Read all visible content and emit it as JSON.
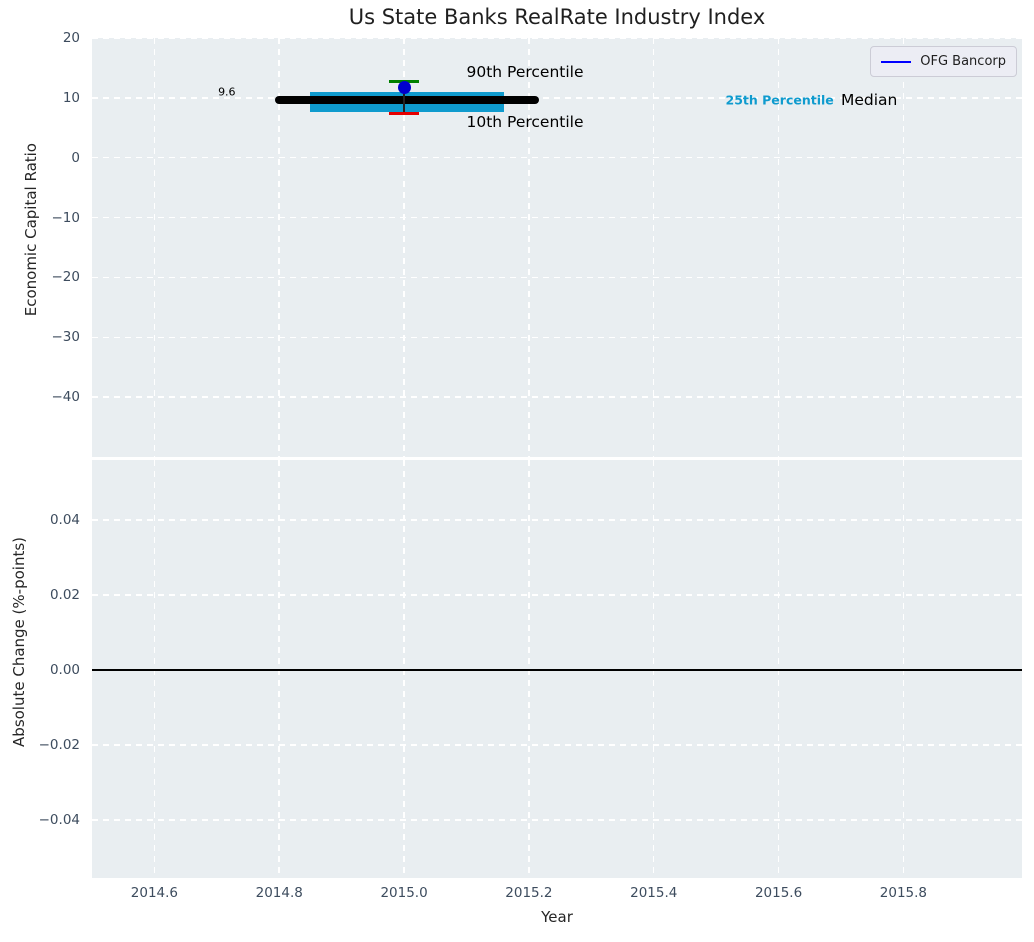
{
  "title": "Us State Banks RealRate Industry Index",
  "colors": {
    "figure_background": "#ffffff",
    "panel_background": "#e9eef1",
    "grid": "#ffffff",
    "tick_label": "#3d4c5e",
    "text": "#262626",
    "percentile_band": "#0f9bce",
    "median_line": "#000000",
    "marker_blue": "#0000cd",
    "whisker_high_green": "#008000",
    "whisker_low_red": "#e60000",
    "legend_line_blue": "#0000ff"
  },
  "chart_data": [
    {
      "type": "box-timeline",
      "title": "Us State Banks RealRate Industry Index",
      "ylabel": "Economic Capital Ratio",
      "xlim": [
        2014.5,
        2015.99
      ],
      "ylim": [
        -50,
        20
      ],
      "grid": {
        "color": "#ffffff",
        "style": "dashed"
      },
      "yticks": [
        {
          "value": 20,
          "label": "20"
        },
        {
          "value": 10,
          "label": "10"
        },
        {
          "value": 0,
          "label": "0"
        },
        {
          "value": -10,
          "label": "−10"
        },
        {
          "value": -20,
          "label": "−20"
        },
        {
          "value": -30,
          "label": "−30"
        },
        {
          "value": -40,
          "label": "−40"
        }
      ],
      "industry_median_line": {
        "value": 9.6,
        "x_start": 2014.8,
        "x_end": 2015.21,
        "color": "#000000",
        "data_label": "9.6",
        "meaning": "Median"
      },
      "percentile_band": {
        "meaning": "25th Percentile band",
        "y_low": 7.7,
        "y_high": 10.9,
        "x_start": 2014.85,
        "x_end": 2015.16,
        "color": "#0f9bce"
      },
      "company_marker": {
        "name": "OFG Bancorp",
        "x": 2015.0,
        "value": 11.8,
        "whisker_high": 12.8,
        "whisker_low": 7.4,
        "marker_color": "#0000cd",
        "whisker_line_color": "#222222",
        "whisker_high_cap_color": "#008000",
        "whisker_low_cap_color": "#e60000"
      },
      "annotations": [
        {
          "text": "9.6",
          "x": 2014.716,
          "y": 11.0,
          "color": "#000000",
          "size": 11,
          "weight": "normal",
          "align": "center"
        },
        {
          "text": "90th Percentile",
          "x": 2015.1,
          "y": 14.3,
          "color": "#000000",
          "size": 15.5,
          "weight": "normal",
          "align": "left"
        },
        {
          "text": "10th Percentile",
          "x": 2015.1,
          "y": 5.9,
          "color": "#000000",
          "size": 15.5,
          "weight": "normal",
          "align": "left"
        },
        {
          "text": "25th Percentile",
          "x": 2015.515,
          "y": 9.6,
          "color": "#0f9bce",
          "size": 12.5,
          "weight": "bold",
          "align": "left"
        },
        {
          "text": "Median",
          "x": 2015.7,
          "y": 9.6,
          "color": "#000000",
          "size": 15.5,
          "weight": "normal",
          "align": "left"
        }
      ],
      "legend": {
        "label": "OFG Bancorp",
        "line_color": "#0000ff",
        "position": "upper right"
      }
    },
    {
      "type": "line",
      "ylabel": "Absolute Change (%-points)",
      "xlabel": "Year",
      "xlim": [
        2014.5,
        2015.99
      ],
      "ylim": [
        -0.0555,
        0.056
      ],
      "yticks": [
        {
          "value": 0.04,
          "label": "0.04"
        },
        {
          "value": 0.02,
          "label": "0.02"
        },
        {
          "value": 0,
          "label": "0.00"
        },
        {
          "value": -0.02,
          "label": "−0.02"
        },
        {
          "value": -0.04,
          "label": "−0.04"
        }
      ],
      "xticks": [
        {
          "value": 2014.6,
          "label": "2014.6"
        },
        {
          "value": 2014.8,
          "label": "2014.8"
        },
        {
          "value": 2015.0,
          "label": "2015.0"
        },
        {
          "value": 2015.2,
          "label": "2015.2"
        },
        {
          "value": 2015.4,
          "label": "2015.4"
        },
        {
          "value": 2015.6,
          "label": "2015.6"
        },
        {
          "value": 2015.8,
          "label": "2015.8"
        }
      ],
      "zero_line": {
        "value": 0.0,
        "color": "#000000"
      },
      "series": []
    }
  ]
}
